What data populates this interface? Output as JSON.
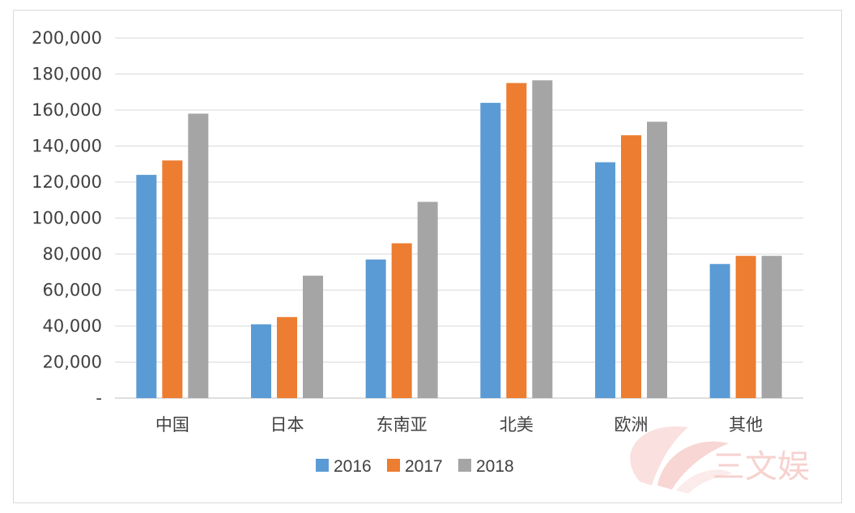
{
  "chart_data": {
    "type": "bar",
    "categories": [
      "中国",
      "日本",
      "东南亚",
      "北美",
      "欧洲",
      "其他"
    ],
    "series": [
      {
        "name": "2016",
        "color": "#5b9bd5",
        "values": [
          124000,
          41000,
          77000,
          164000,
          131000,
          74500
        ]
      },
      {
        "name": "2017",
        "color": "#ed7d31",
        "values": [
          132000,
          45000,
          86000,
          175000,
          146000,
          79000
        ]
      },
      {
        "name": "2018",
        "color": "#a5a5a5",
        "values": [
          158000,
          68000,
          109000,
          176500,
          153500,
          79000
        ]
      }
    ],
    "ylim": [
      0,
      200000
    ],
    "yticks": [
      {
        "value": 0,
        "label": "-"
      },
      {
        "value": 20000,
        "label": "20,000"
      },
      {
        "value": 40000,
        "label": "40,000"
      },
      {
        "value": 60000,
        "label": "60,000"
      },
      {
        "value": 80000,
        "label": "80,000"
      },
      {
        "value": 100000,
        "label": "100,000"
      },
      {
        "value": 120000,
        "label": "120,000"
      },
      {
        "value": 140000,
        "label": "140,000"
      },
      {
        "value": 160000,
        "label": "160,000"
      },
      {
        "value": 180000,
        "label": "180,000"
      },
      {
        "value": 200000,
        "label": "200,000"
      }
    ],
    "grid": true,
    "legend_position": "bottom"
  },
  "watermark": {
    "text": "三文娱"
  }
}
